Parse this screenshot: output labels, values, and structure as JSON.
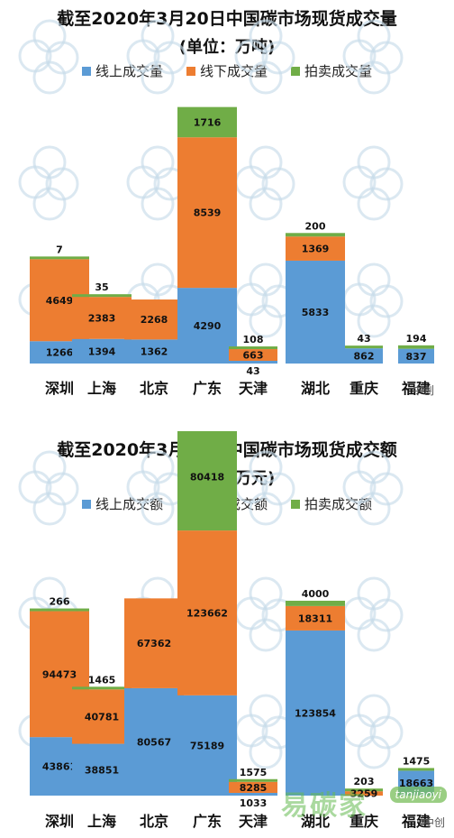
{
  "chart_data": [
    {
      "type": "bar",
      "stacked": true,
      "title": "截至2020年3月20日中国碳市场现货成交量",
      "subtitle": "(单位：万吨)",
      "categories": [
        "深圳",
        "上海",
        "北京",
        "广东",
        "天津",
        "湖北",
        "重庆",
        "福建"
      ],
      "series": [
        {
          "name": "线上成交量",
          "color": "#5b9bd5",
          "values": [
            1266,
            1394,
            1362,
            4290,
            43,
            5833,
            862,
            837
          ]
        },
        {
          "name": "线下成交量",
          "color": "#ed7d31",
          "values": [
            4649,
            2383,
            2268,
            8539,
            663,
            1369,
            0,
            0
          ]
        },
        {
          "name": "拍卖成交量",
          "color": "#70ad47",
          "values": [
            7,
            35,
            0,
            1716,
            108,
            200,
            43,
            194
          ]
        }
      ],
      "legend_position": "top",
      "grid": false,
      "ylim": [
        0,
        16000
      ]
    },
    {
      "type": "bar",
      "stacked": true,
      "title": "截至2020年3月20日中国碳市场现货成交额",
      "subtitle": "(单位：万元)",
      "categories": [
        "深圳",
        "上海",
        "北京",
        "广东",
        "天津",
        "湖北",
        "重庆",
        "福建"
      ],
      "series": [
        {
          "name": "线上成交额",
          "color": "#5b9bd5",
          "values": [
            43861,
            38851,
            80567,
            75189,
            1033,
            123854,
            0,
            18663
          ]
        },
        {
          "name": "线下成交额",
          "color": "#ed7d31",
          "values": [
            94473,
            40781,
            67362,
            123662,
            8285,
            18311,
            3259,
            0
          ]
        },
        {
          "name": "拍卖成交额",
          "color": "#70ad47",
          "values": [
            266,
            1465,
            0,
            80418,
            1575,
            4000,
            203,
            1475
          ]
        }
      ],
      "legend_position": "top",
      "grid": false,
      "ylim": [
        0,
        300000
      ]
    }
  ],
  "watermarks": {
    "corner_text_1": "中创",
    "corner_text_2": "中创",
    "brand": "易碳家",
    "brand_tag": "tanjiaoyi"
  }
}
